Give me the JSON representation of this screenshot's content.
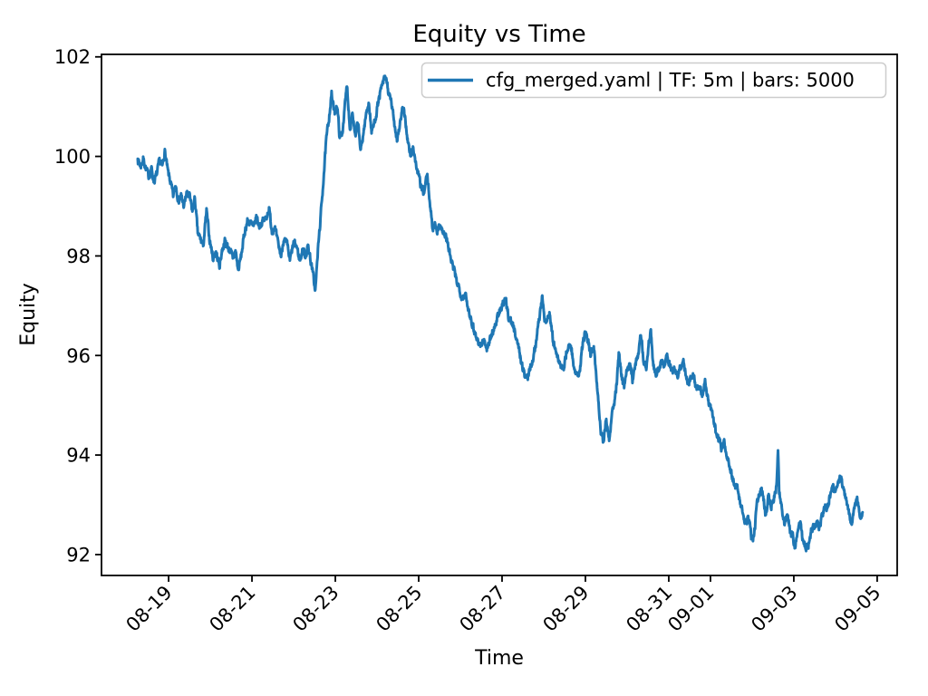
{
  "figure": {
    "title": "Equity vs Time",
    "xlabel": "Time",
    "ylabel": "Equity",
    "legend": {
      "label": "cfg_merged.yaml | TF: 5m | bars: 5000"
    }
  },
  "chart_data": {
    "type": "line",
    "title": "Equity vs Time",
    "xlabel": "Time",
    "ylabel": "Equity",
    "grid": false,
    "legend_position": "upper right",
    "line_color": "#1f77b4",
    "axis_color": "#000000",
    "y_ticks": [
      92,
      94,
      96,
      98,
      100,
      102
    ],
    "x_ticks": [
      {
        "label": "08-19",
        "day": 0
      },
      {
        "label": "08-21",
        "day": 2
      },
      {
        "label": "08-23",
        "day": 4
      },
      {
        "label": "08-25",
        "day": 6
      },
      {
        "label": "08-27",
        "day": 8
      },
      {
        "label": "08-29",
        "day": 10
      },
      {
        "label": "08-31",
        "day": 12
      },
      {
        "label": "09-01",
        "day": 13
      },
      {
        "label": "09-03",
        "day": 15
      },
      {
        "label": "09-05",
        "day": 17
      }
    ],
    "xlim_days": [
      -1.61,
      17.48
    ],
    "ylim": [
      91.58,
      102.05
    ],
    "series": [
      {
        "name": "cfg_merged.yaml | TF: 5m | bars: 5000",
        "timeframe": "5m",
        "bars": 5000,
        "start_value": 100.0,
        "end_value": 92.85,
        "max_value": 101.6,
        "min_value": 92.05,
        "points_day_equity": [
          [
            -0.74,
            99.95
          ],
          [
            -0.67,
            99.8
          ],
          [
            -0.61,
            99.95
          ],
          [
            -0.54,
            99.75
          ],
          [
            -0.48,
            99.6
          ],
          [
            -0.41,
            99.75
          ],
          [
            -0.35,
            99.5
          ],
          [
            -0.28,
            99.65
          ],
          [
            -0.22,
            99.9
          ],
          [
            -0.15,
            99.8
          ],
          [
            -0.09,
            100.1
          ],
          [
            -0.02,
            99.7
          ],
          [
            0.04,
            99.5
          ],
          [
            0.11,
            99.2
          ],
          [
            0.17,
            99.45
          ],
          [
            0.24,
            99.1
          ],
          [
            0.3,
            99.2
          ],
          [
            0.37,
            99.0
          ],
          [
            0.43,
            99.25
          ],
          [
            0.5,
            99.2
          ],
          [
            0.57,
            98.9
          ],
          [
            0.63,
            99.15
          ],
          [
            0.7,
            98.45
          ],
          [
            0.76,
            98.35
          ],
          [
            0.83,
            98.2
          ],
          [
            0.91,
            98.9
          ],
          [
            0.98,
            98.35
          ],
          [
            1.07,
            97.95
          ],
          [
            1.13,
            98.1
          ],
          [
            1.22,
            97.8
          ],
          [
            1.28,
            98.1
          ],
          [
            1.35,
            98.3
          ],
          [
            1.41,
            98.2
          ],
          [
            1.48,
            98.1
          ],
          [
            1.54,
            97.95
          ],
          [
            1.61,
            98.1
          ],
          [
            1.67,
            97.7
          ],
          [
            1.74,
            98.0
          ],
          [
            1.83,
            98.5
          ],
          [
            1.89,
            98.7
          ],
          [
            1.98,
            98.65
          ],
          [
            2.04,
            98.55
          ],
          [
            2.11,
            98.8
          ],
          [
            2.17,
            98.6
          ],
          [
            2.26,
            98.7
          ],
          [
            2.33,
            98.75
          ],
          [
            2.41,
            98.95
          ],
          [
            2.48,
            98.5
          ],
          [
            2.54,
            98.6
          ],
          [
            2.61,
            98.3
          ],
          [
            2.7,
            98.0
          ],
          [
            2.76,
            98.35
          ],
          [
            2.85,
            98.2
          ],
          [
            2.91,
            97.9
          ],
          [
            3.0,
            98.25
          ],
          [
            3.07,
            98.2
          ],
          [
            3.15,
            97.9
          ],
          [
            3.22,
            98.15
          ],
          [
            3.28,
            98.0
          ],
          [
            3.35,
            98.2
          ],
          [
            3.41,
            97.9
          ],
          [
            3.48,
            97.55
          ],
          [
            3.52,
            97.3
          ],
          [
            3.59,
            98.2
          ],
          [
            3.65,
            98.8
          ],
          [
            3.72,
            99.6
          ],
          [
            3.78,
            100.3
          ],
          [
            3.85,
            100.8
          ],
          [
            3.91,
            101.25
          ],
          [
            3.98,
            100.85
          ],
          [
            4.04,
            101.05
          ],
          [
            4.11,
            100.35
          ],
          [
            4.17,
            100.5
          ],
          [
            4.24,
            101.1
          ],
          [
            4.28,
            101.45
          ],
          [
            4.35,
            100.55
          ],
          [
            4.41,
            100.9
          ],
          [
            4.48,
            100.35
          ],
          [
            4.54,
            100.7
          ],
          [
            4.61,
            100.1
          ],
          [
            4.67,
            100.45
          ],
          [
            4.74,
            100.85
          ],
          [
            4.8,
            101.1
          ],
          [
            4.87,
            100.5
          ],
          [
            4.93,
            100.65
          ],
          [
            5.0,
            100.95
          ],
          [
            5.07,
            101.25
          ],
          [
            5.15,
            101.5
          ],
          [
            5.22,
            101.58
          ],
          [
            5.28,
            101.25
          ],
          [
            5.35,
            101.05
          ],
          [
            5.41,
            100.7
          ],
          [
            5.48,
            100.35
          ],
          [
            5.54,
            100.6
          ],
          [
            5.61,
            100.95
          ],
          [
            5.67,
            100.8
          ],
          [
            5.74,
            100.3
          ],
          [
            5.8,
            100.0
          ],
          [
            5.87,
            100.2
          ],
          [
            5.93,
            99.85
          ],
          [
            6.0,
            99.6
          ],
          [
            6.07,
            99.35
          ],
          [
            6.13,
            99.25
          ],
          [
            6.2,
            99.65
          ],
          [
            6.26,
            99.15
          ],
          [
            6.33,
            98.55
          ],
          [
            6.39,
            98.65
          ],
          [
            6.46,
            98.5
          ],
          [
            6.52,
            98.65
          ],
          [
            6.59,
            98.45
          ],
          [
            6.65,
            98.4
          ],
          [
            6.72,
            98.15
          ],
          [
            6.78,
            97.9
          ],
          [
            6.85,
            97.7
          ],
          [
            6.91,
            97.5
          ],
          [
            6.98,
            97.35
          ],
          [
            7.04,
            97.15
          ],
          [
            7.11,
            97.25
          ],
          [
            7.17,
            97.0
          ],
          [
            7.24,
            96.8
          ],
          [
            7.3,
            96.6
          ],
          [
            7.39,
            96.35
          ],
          [
            7.48,
            96.2
          ],
          [
            7.57,
            96.3
          ],
          [
            7.65,
            96.15
          ],
          [
            7.74,
            96.4
          ],
          [
            7.83,
            96.6
          ],
          [
            7.91,
            96.8
          ],
          [
            8.0,
            97.0
          ],
          [
            8.09,
            97.1
          ],
          [
            8.15,
            96.8
          ],
          [
            8.22,
            96.7
          ],
          [
            8.28,
            96.55
          ],
          [
            8.35,
            96.35
          ],
          [
            8.41,
            96.1
          ],
          [
            8.48,
            95.8
          ],
          [
            8.54,
            95.6
          ],
          [
            8.61,
            95.55
          ],
          [
            8.67,
            95.75
          ],
          [
            8.74,
            95.95
          ],
          [
            8.8,
            96.2
          ],
          [
            8.87,
            96.6
          ],
          [
            8.96,
            97.2
          ],
          [
            9.02,
            96.7
          ],
          [
            9.09,
            96.75
          ],
          [
            9.15,
            96.85
          ],
          [
            9.22,
            96.3
          ],
          [
            9.28,
            96.1
          ],
          [
            9.35,
            95.9
          ],
          [
            9.41,
            95.8
          ],
          [
            9.48,
            95.7
          ],
          [
            9.54,
            96.05
          ],
          [
            9.61,
            96.25
          ],
          [
            9.67,
            96.1
          ],
          [
            9.74,
            95.7
          ],
          [
            9.8,
            95.55
          ],
          [
            9.87,
            95.7
          ],
          [
            9.93,
            96.2
          ],
          [
            10.0,
            96.5
          ],
          [
            10.07,
            96.3
          ],
          [
            10.13,
            96.0
          ],
          [
            10.2,
            96.2
          ],
          [
            10.26,
            95.6
          ],
          [
            10.33,
            94.9
          ],
          [
            10.37,
            94.5
          ],
          [
            10.43,
            94.3
          ],
          [
            10.5,
            94.7
          ],
          [
            10.57,
            94.35
          ],
          [
            10.63,
            94.8
          ],
          [
            10.7,
            95.1
          ],
          [
            10.76,
            95.5
          ],
          [
            10.8,
            96.0
          ],
          [
            10.87,
            95.6
          ],
          [
            10.93,
            95.35
          ],
          [
            11.0,
            95.7
          ],
          [
            11.07,
            95.9
          ],
          [
            11.13,
            95.5
          ],
          [
            11.2,
            95.8
          ],
          [
            11.26,
            96.0
          ],
          [
            11.33,
            96.5
          ],
          [
            11.39,
            95.9
          ],
          [
            11.46,
            95.75
          ],
          [
            11.52,
            96.3
          ],
          [
            11.57,
            96.45
          ],
          [
            11.63,
            95.8
          ],
          [
            11.7,
            95.6
          ],
          [
            11.76,
            95.75
          ],
          [
            11.83,
            95.9
          ],
          [
            11.89,
            95.8
          ],
          [
            11.96,
            96.0
          ],
          [
            12.02,
            95.85
          ],
          [
            12.09,
            95.7
          ],
          [
            12.15,
            95.75
          ],
          [
            12.22,
            95.6
          ],
          [
            12.28,
            95.75
          ],
          [
            12.35,
            95.85
          ],
          [
            12.41,
            95.6
          ],
          [
            12.48,
            95.45
          ],
          [
            12.54,
            95.6
          ],
          [
            12.61,
            95.55
          ],
          [
            12.67,
            95.3
          ],
          [
            12.74,
            95.35
          ],
          [
            12.8,
            95.2
          ],
          [
            12.87,
            95.5
          ],
          [
            12.93,
            95.15
          ],
          [
            13.0,
            94.95
          ],
          [
            13.07,
            94.7
          ],
          [
            13.13,
            94.45
          ],
          [
            13.2,
            94.35
          ],
          [
            13.26,
            94.1
          ],
          [
            13.33,
            94.25
          ],
          [
            13.39,
            94.0
          ],
          [
            13.46,
            93.8
          ],
          [
            13.52,
            93.55
          ],
          [
            13.59,
            93.4
          ],
          [
            13.65,
            93.3
          ],
          [
            13.72,
            93.0
          ],
          [
            13.78,
            92.85
          ],
          [
            13.85,
            92.6
          ],
          [
            13.91,
            92.75
          ],
          [
            13.98,
            92.35
          ],
          [
            14.02,
            92.25
          ],
          [
            14.07,
            92.6
          ],
          [
            14.13,
            93.1
          ],
          [
            14.2,
            93.3
          ],
          [
            14.26,
            93.25
          ],
          [
            14.33,
            92.75
          ],
          [
            14.39,
            93.15
          ],
          [
            14.46,
            93.0
          ],
          [
            14.52,
            93.1
          ],
          [
            14.59,
            93.4
          ],
          [
            14.62,
            94.17
          ],
          [
            14.65,
            93.3
          ],
          [
            14.72,
            92.9
          ],
          [
            14.78,
            92.6
          ],
          [
            14.85,
            92.85
          ],
          [
            14.91,
            92.5
          ],
          [
            14.98,
            92.35
          ],
          [
            15.02,
            92.1
          ],
          [
            15.09,
            92.45
          ],
          [
            15.15,
            92.7
          ],
          [
            15.22,
            92.3
          ],
          [
            15.28,
            92.15
          ],
          [
            15.35,
            92.2
          ],
          [
            15.41,
            92.45
          ],
          [
            15.48,
            92.55
          ],
          [
            15.54,
            92.65
          ],
          [
            15.61,
            92.55
          ],
          [
            15.67,
            92.75
          ],
          [
            15.74,
            93.0
          ],
          [
            15.8,
            92.9
          ],
          [
            15.87,
            93.2
          ],
          [
            15.93,
            93.35
          ],
          [
            16.0,
            93.3
          ],
          [
            16.07,
            93.45
          ],
          [
            16.13,
            93.55
          ],
          [
            16.2,
            93.3
          ],
          [
            16.26,
            93.15
          ],
          [
            16.33,
            92.8
          ],
          [
            16.39,
            92.6
          ],
          [
            16.46,
            93.0
          ],
          [
            16.52,
            93.1
          ],
          [
            16.59,
            92.75
          ],
          [
            16.65,
            92.85
          ]
        ]
      }
    ],
    "noise": {
      "seed": 7,
      "amp": 0.13,
      "phi": 0.5,
      "step_days": 0.007
    }
  }
}
